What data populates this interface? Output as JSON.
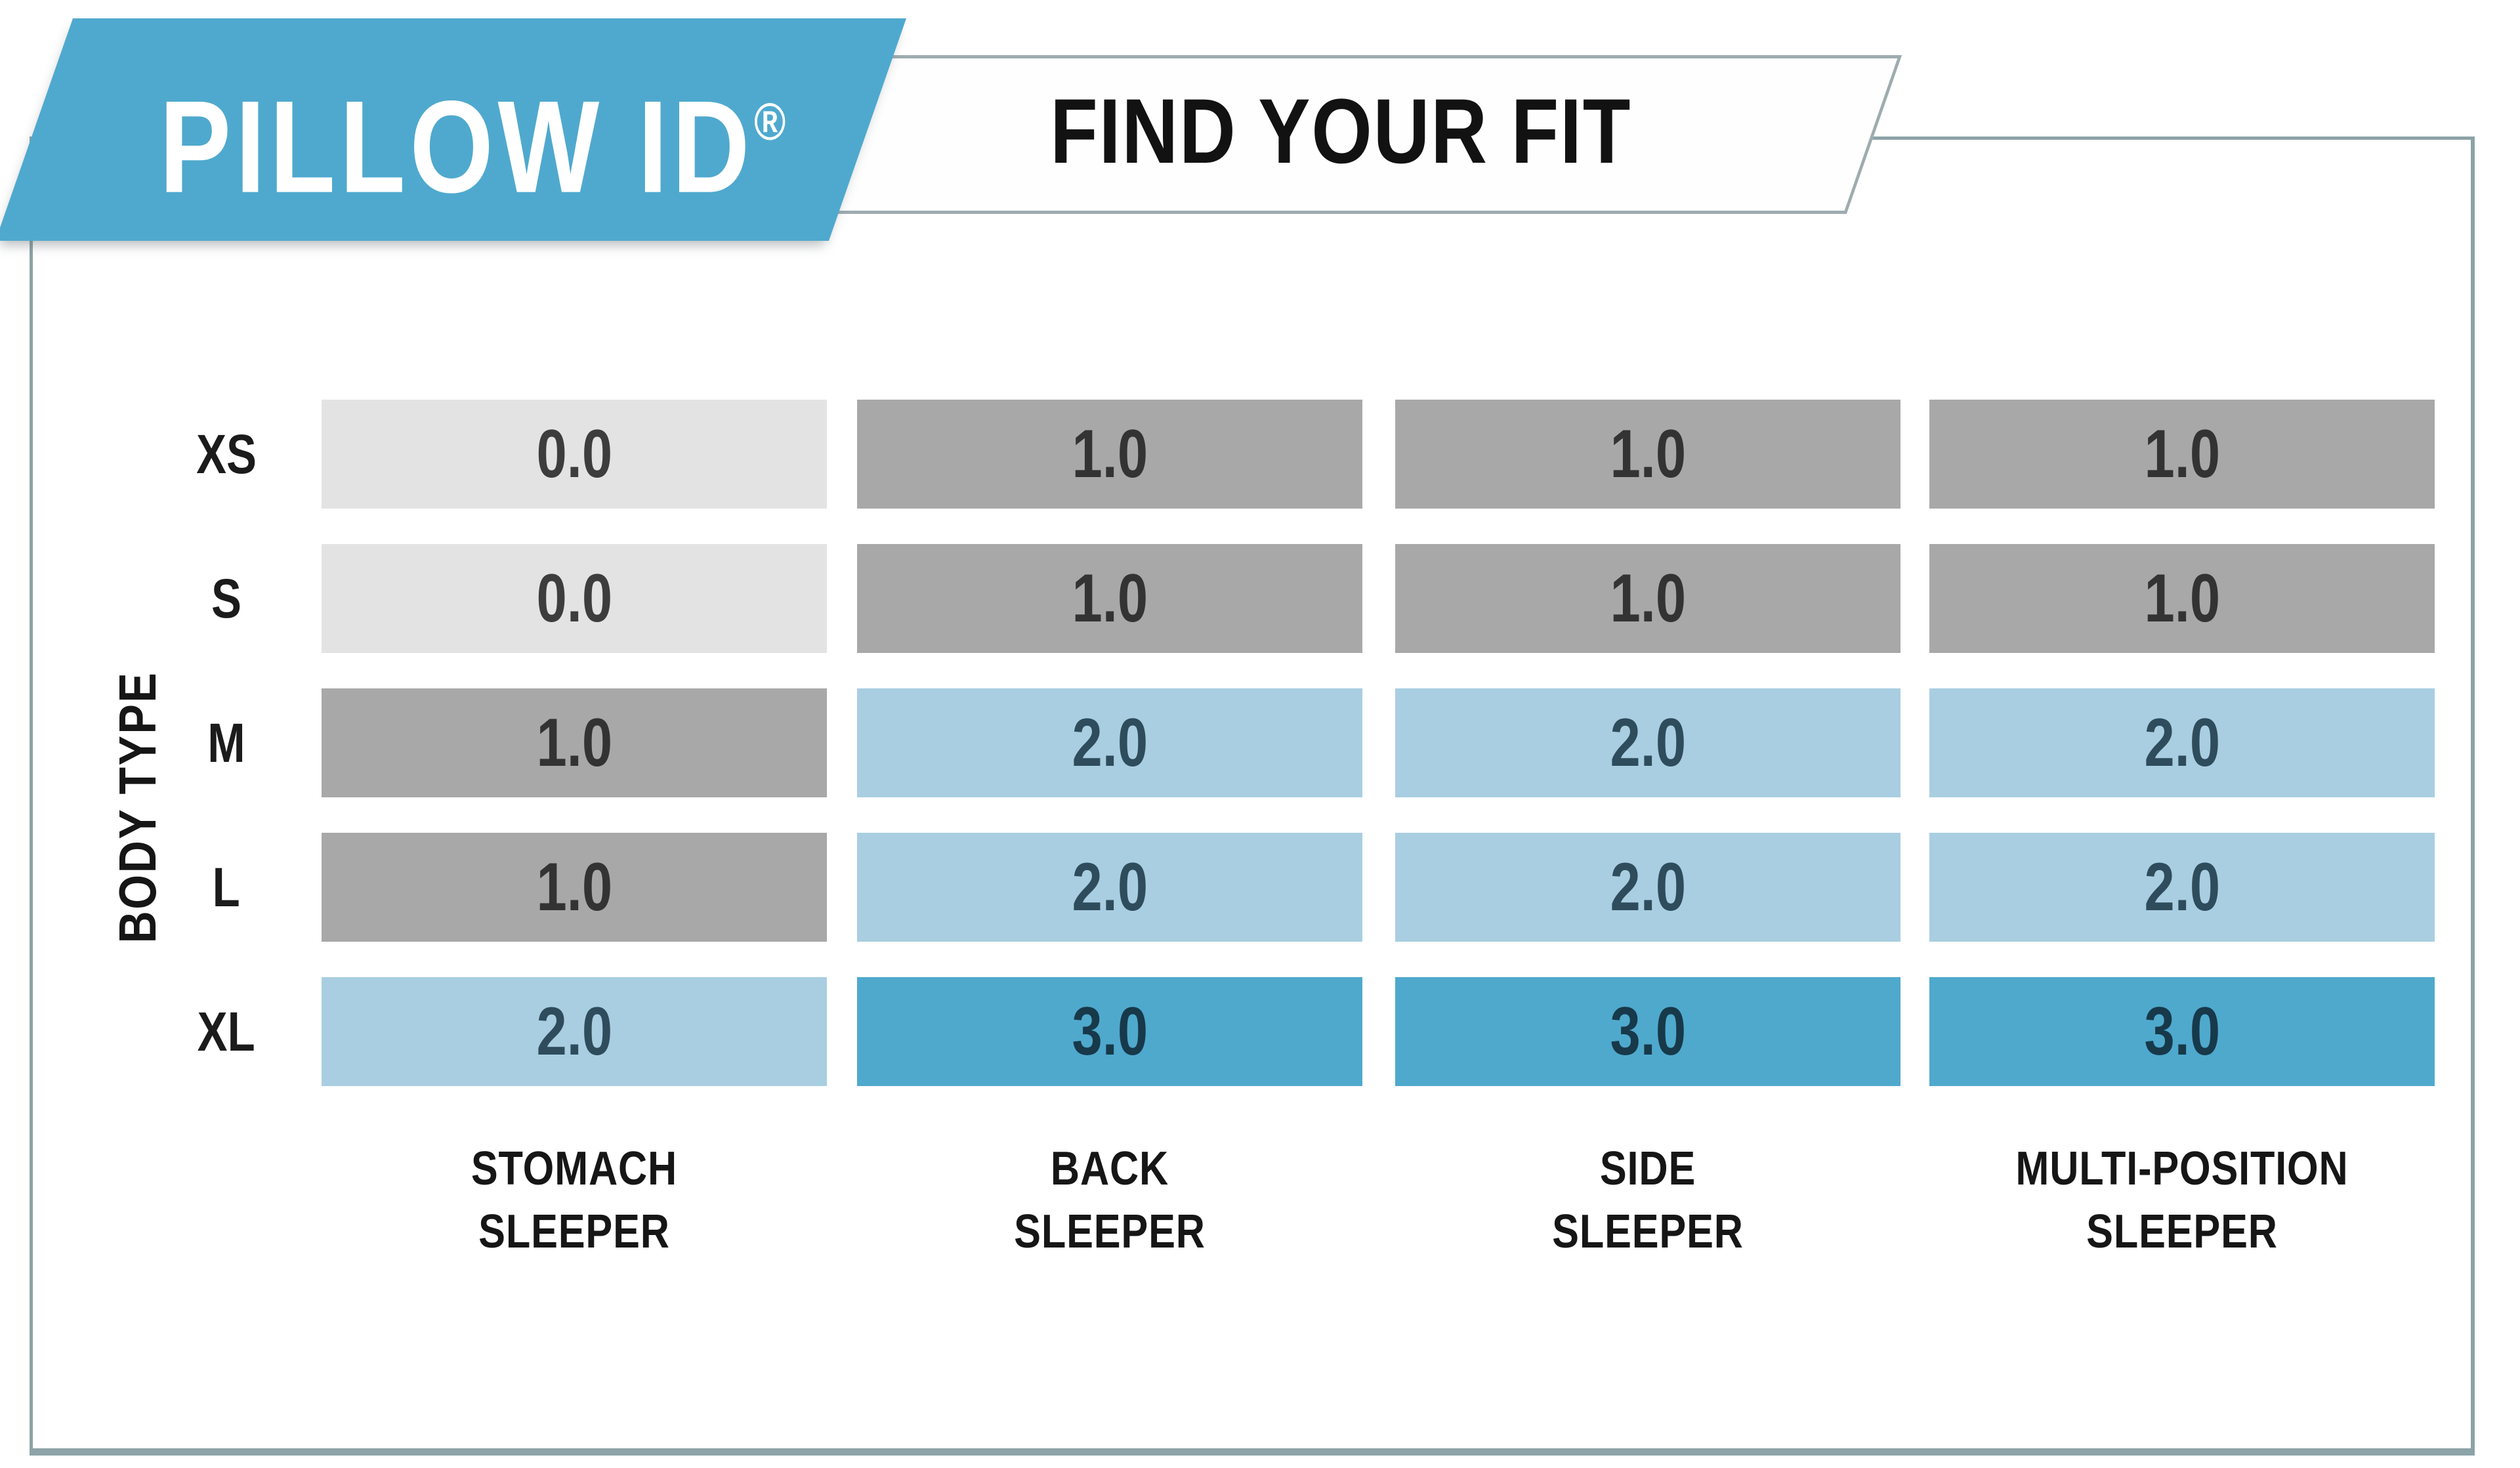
{
  "header": {
    "brand": "PILLOW ID",
    "brand_mark": "®",
    "tagline": "FIND YOUR FIT"
  },
  "colors": {
    "banner_blue": "#4FA9CE",
    "frame_border": "#8CA3A7",
    "plate_border": "#9EACB0",
    "cell_light_gray": "#E3E3E3",
    "cell_gray": "#A8A8A8",
    "cell_light_blue": "#A9CEE1",
    "cell_blue": "#4FA9CD"
  },
  "chart_data": {
    "type": "heatmap",
    "title": "PILLOW ID® FIND YOUR FIT",
    "y_axis_label": "BODY TYPE",
    "y_categories": [
      "XS",
      "S",
      "M",
      "L",
      "XL"
    ],
    "x_categories": [
      "STOMACH SLEEPER",
      "BACK SLEEPER",
      "SIDE SLEEPER",
      "MULTI-POSITION SLEEPER"
    ],
    "x_category_lines": [
      [
        "STOMACH",
        "SLEEPER"
      ],
      [
        "BACK",
        "SLEEPER"
      ],
      [
        "SIDE",
        "SLEEPER"
      ],
      [
        "MULTI-POSITION",
        "SLEEPER"
      ]
    ],
    "values": [
      [
        0.0,
        1.0,
        1.0,
        1.0
      ],
      [
        0.0,
        1.0,
        1.0,
        1.0
      ],
      [
        1.0,
        2.0,
        2.0,
        2.0
      ],
      [
        1.0,
        2.0,
        2.0,
        2.0
      ],
      [
        2.0,
        3.0,
        3.0,
        3.0
      ]
    ],
    "value_labels": [
      [
        "0.0",
        "1.0",
        "1.0",
        "1.0"
      ],
      [
        "0.0",
        "1.0",
        "1.0",
        "1.0"
      ],
      [
        "1.0",
        "2.0",
        "2.0",
        "2.0"
      ],
      [
        "1.0",
        "2.0",
        "2.0",
        "2.0"
      ],
      [
        "2.0",
        "3.0",
        "3.0",
        "3.0"
      ]
    ],
    "color_scale": {
      "0.0": "#E3E3E3",
      "1.0": "#A8A8A8",
      "2.0": "#A9CEE1",
      "3.0": "#4FA9CD"
    },
    "cell_colors": [
      [
        "#E3E3E3",
        "#A8A8A8",
        "#A8A8A8",
        "#A8A8A8"
      ],
      [
        "#E3E3E3",
        "#A8A8A8",
        "#A8A8A8",
        "#A8A8A8"
      ],
      [
        "#A8A8A8",
        "#A9CEE1",
        "#A9CEE1",
        "#A9CEE1"
      ],
      [
        "#A8A8A8",
        "#A9CEE1",
        "#A9CEE1",
        "#A9CEE1"
      ],
      [
        "#A9CEE1",
        "#4FA9CD",
        "#4FA9CD",
        "#4FA9CD"
      ]
    ],
    "text_colors": [
      [
        "#3d3d3d",
        "#333333",
        "#333333",
        "#333333"
      ],
      [
        "#3d3d3d",
        "#333333",
        "#333333",
        "#333333"
      ],
      [
        "#333333",
        "#2e4c5c",
        "#2e4c5c",
        "#2e4c5c"
      ],
      [
        "#333333",
        "#2e4c5c",
        "#2e4c5c",
        "#2e4c5c"
      ],
      [
        "#2e4c5c",
        "#17394a",
        "#17394a",
        "#17394a"
      ]
    ],
    "legend": "none",
    "grid": "off"
  }
}
